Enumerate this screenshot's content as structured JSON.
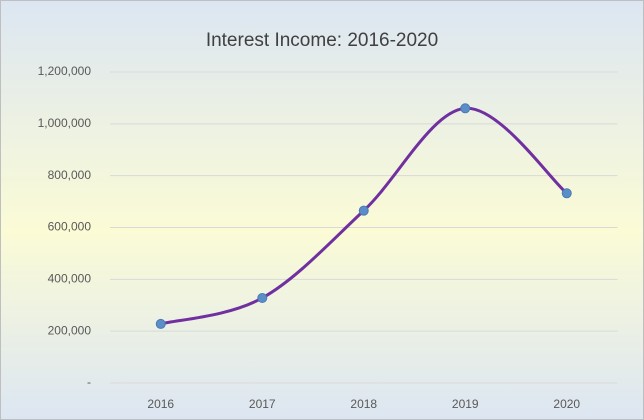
{
  "chart_data": {
    "type": "line",
    "title": "Interest Income: 2016-2020",
    "categories": [
      "2016",
      "2017",
      "2018",
      "2019",
      "2020"
    ],
    "series": [
      {
        "name": "Interest Income",
        "color": "#7030a0",
        "marker_color": "#5b8ec9",
        "values": [
          228000,
          328000,
          665000,
          1060000,
          732000
        ]
      }
    ],
    "ylim": [
      0,
      1200000
    ],
    "yticks": [
      {
        "value": 0,
        "label": "-"
      },
      {
        "value": 200000,
        "label": "200,000"
      },
      {
        "value": 400000,
        "label": "400,000"
      },
      {
        "value": 600000,
        "label": "600,000"
      },
      {
        "value": 800000,
        "label": "800,000"
      },
      {
        "value": 1000000,
        "label": "1,000,000"
      },
      {
        "value": 1200000,
        "label": "1,200,000"
      }
    ],
    "grid": true,
    "smooth": true
  }
}
